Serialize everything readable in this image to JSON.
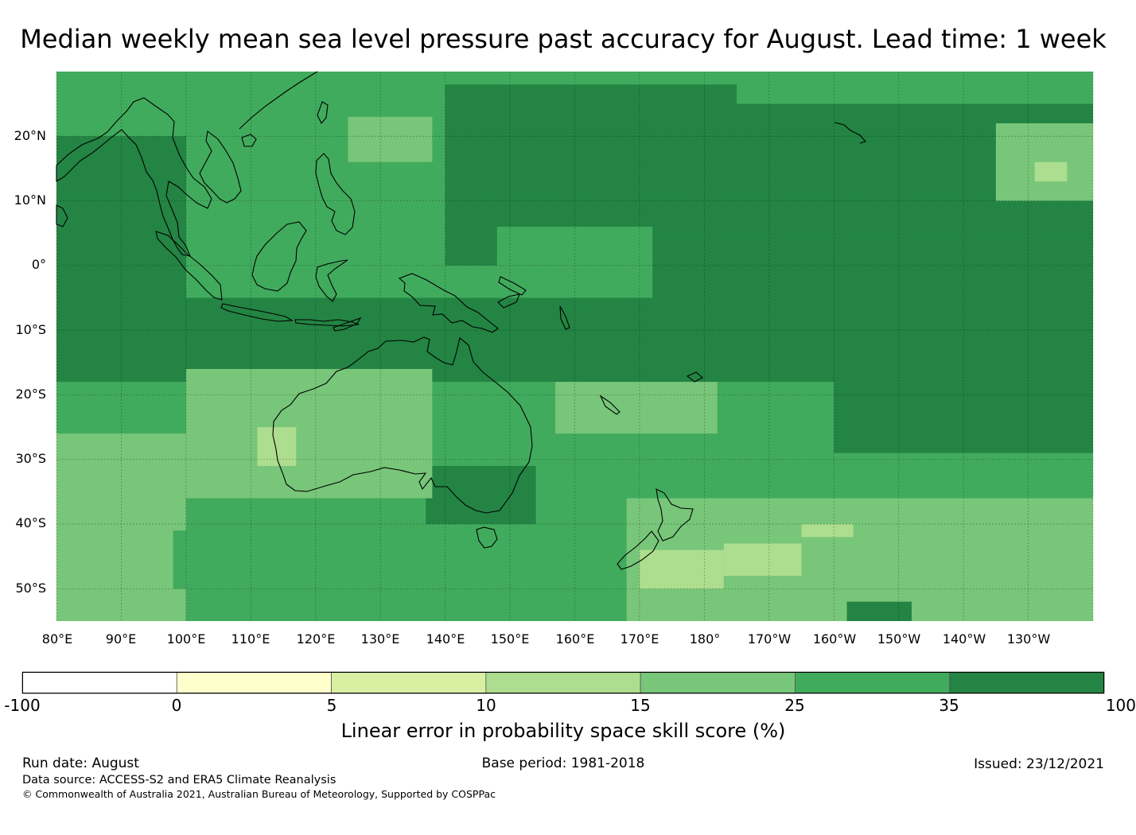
{
  "title": "Median weekly mean sea level pressure past accuracy for August. Lead time: 1 week",
  "map": {
    "projection": "equirectangular",
    "extent": {
      "lon_min": 80,
      "lon_max": 240,
      "lat_min": -55,
      "lat_max": 30
    },
    "gridlines": true,
    "lat_labels": [
      "20°N",
      "10°N",
      "0°",
      "10°S",
      "20°S",
      "30°S",
      "40°S",
      "50°S"
    ],
    "lon_labels": [
      "80°E",
      "90°E",
      "100°E",
      "110°E",
      "120°E",
      "130°E",
      "140°E",
      "150°E",
      "160°E",
      "170°E",
      "180°",
      "170°W",
      "160°W",
      "150°W",
      "140°W",
      "130°W"
    ],
    "field": "LEPS skill score of weekly mean sea level pressure",
    "regions": [
      {
        "category": "25-35",
        "lon": [
          80,
          240
        ],
        "lat": [
          -55,
          30
        ]
      },
      {
        "category": "35-100",
        "lon": [
          172,
          240
        ],
        "lat": [
          -15,
          25
        ]
      },
      {
        "category": "35-100",
        "lon": [
          80,
          100
        ],
        "lat": [
          -17,
          20
        ]
      },
      {
        "category": "35-100",
        "lon": [
          140,
          185
        ],
        "lat": [
          0,
          28
        ]
      },
      {
        "category": "35-100",
        "lon": [
          80,
          172
        ],
        "lat": [
          -18,
          -5
        ]
      },
      {
        "category": "35-100",
        "lon": [
          160,
          240
        ],
        "lat": [
          -18,
          5
        ]
      },
      {
        "category": "35-100",
        "lon": [
          137,
          154
        ],
        "lat": [
          -40,
          -31
        ]
      },
      {
        "category": "35-100",
        "lon": [
          200,
          240
        ],
        "lat": [
          -29,
          -18
        ]
      },
      {
        "category": "25-35",
        "lon": [
          100,
          125
        ],
        "lat": [
          0,
          12
        ]
      },
      {
        "category": "25-35",
        "lon": [
          148,
          172
        ],
        "lat": [
          -5,
          6
        ]
      },
      {
        "category": "15-25",
        "lon": [
          125,
          138
        ],
        "lat": [
          16,
          23
        ]
      },
      {
        "category": "15-25",
        "lon": [
          100,
          138
        ],
        "lat": [
          -36,
          -16
        ]
      },
      {
        "category": "15-25",
        "lon": [
          80,
          100
        ],
        "lat": [
          -55,
          -32
        ]
      },
      {
        "category": "15-25",
        "lon": [
          80,
          110
        ],
        "lat": [
          -35,
          -26
        ]
      },
      {
        "category": "15-25",
        "lon": [
          168,
          240
        ],
        "lat": [
          -55,
          -36
        ]
      },
      {
        "category": "15-25",
        "lon": [
          157,
          182
        ],
        "lat": [
          -26,
          -18
        ]
      },
      {
        "category": "15-25",
        "lon": [
          225,
          240
        ],
        "lat": [
          10,
          22
        ]
      },
      {
        "category": "25-35",
        "lon": [
          98,
          112
        ],
        "lat": [
          -50,
          -41
        ]
      },
      {
        "category": "10-15",
        "lon": [
          111,
          117
        ],
        "lat": [
          -31,
          -25
        ]
      },
      {
        "category": "10-15",
        "lon": [
          170,
          183
        ],
        "lat": [
          -50,
          -44
        ]
      },
      {
        "category": "10-15",
        "lon": [
          183,
          195
        ],
        "lat": [
          -48,
          -43
        ]
      },
      {
        "category": "10-15",
        "lon": [
          195,
          203
        ],
        "lat": [
          -42,
          -40
        ]
      },
      {
        "category": "10-15",
        "lon": [
          231,
          236
        ],
        "lat": [
          13,
          16
        ]
      },
      {
        "category": "35-100",
        "lon": [
          202,
          212
        ],
        "lat": [
          -55,
          -52
        ]
      }
    ]
  },
  "colorbar": {
    "label": "Linear error in probability space skill score (%)",
    "ticks": [
      "-100",
      "0",
      "5",
      "10",
      "15",
      "25",
      "35",
      "100"
    ],
    "categories": [
      {
        "range": "-100-0",
        "color": "#ffffff"
      },
      {
        "range": "0-5",
        "color": "#ffffcc"
      },
      {
        "range": "5-10",
        "color": "#d9f0a3"
      },
      {
        "range": "10-15",
        "color": "#addd8e"
      },
      {
        "range": "15-25",
        "color": "#78c679"
      },
      {
        "range": "25-35",
        "color": "#41ab5d"
      },
      {
        "range": "35-100",
        "color": "#238443"
      }
    ]
  },
  "footer": {
    "run_date": "Run date: August",
    "base_period": "Base period: 1981-2018",
    "issued": "Issued: 23/12/2021",
    "data_source": "Data source: ACCESS-S2 and ERA5 Climate Reanalysis",
    "copyright": "© Commonwealth of Australia 2021, Australian Bureau of Meteorology, Supported by COSPPac"
  }
}
